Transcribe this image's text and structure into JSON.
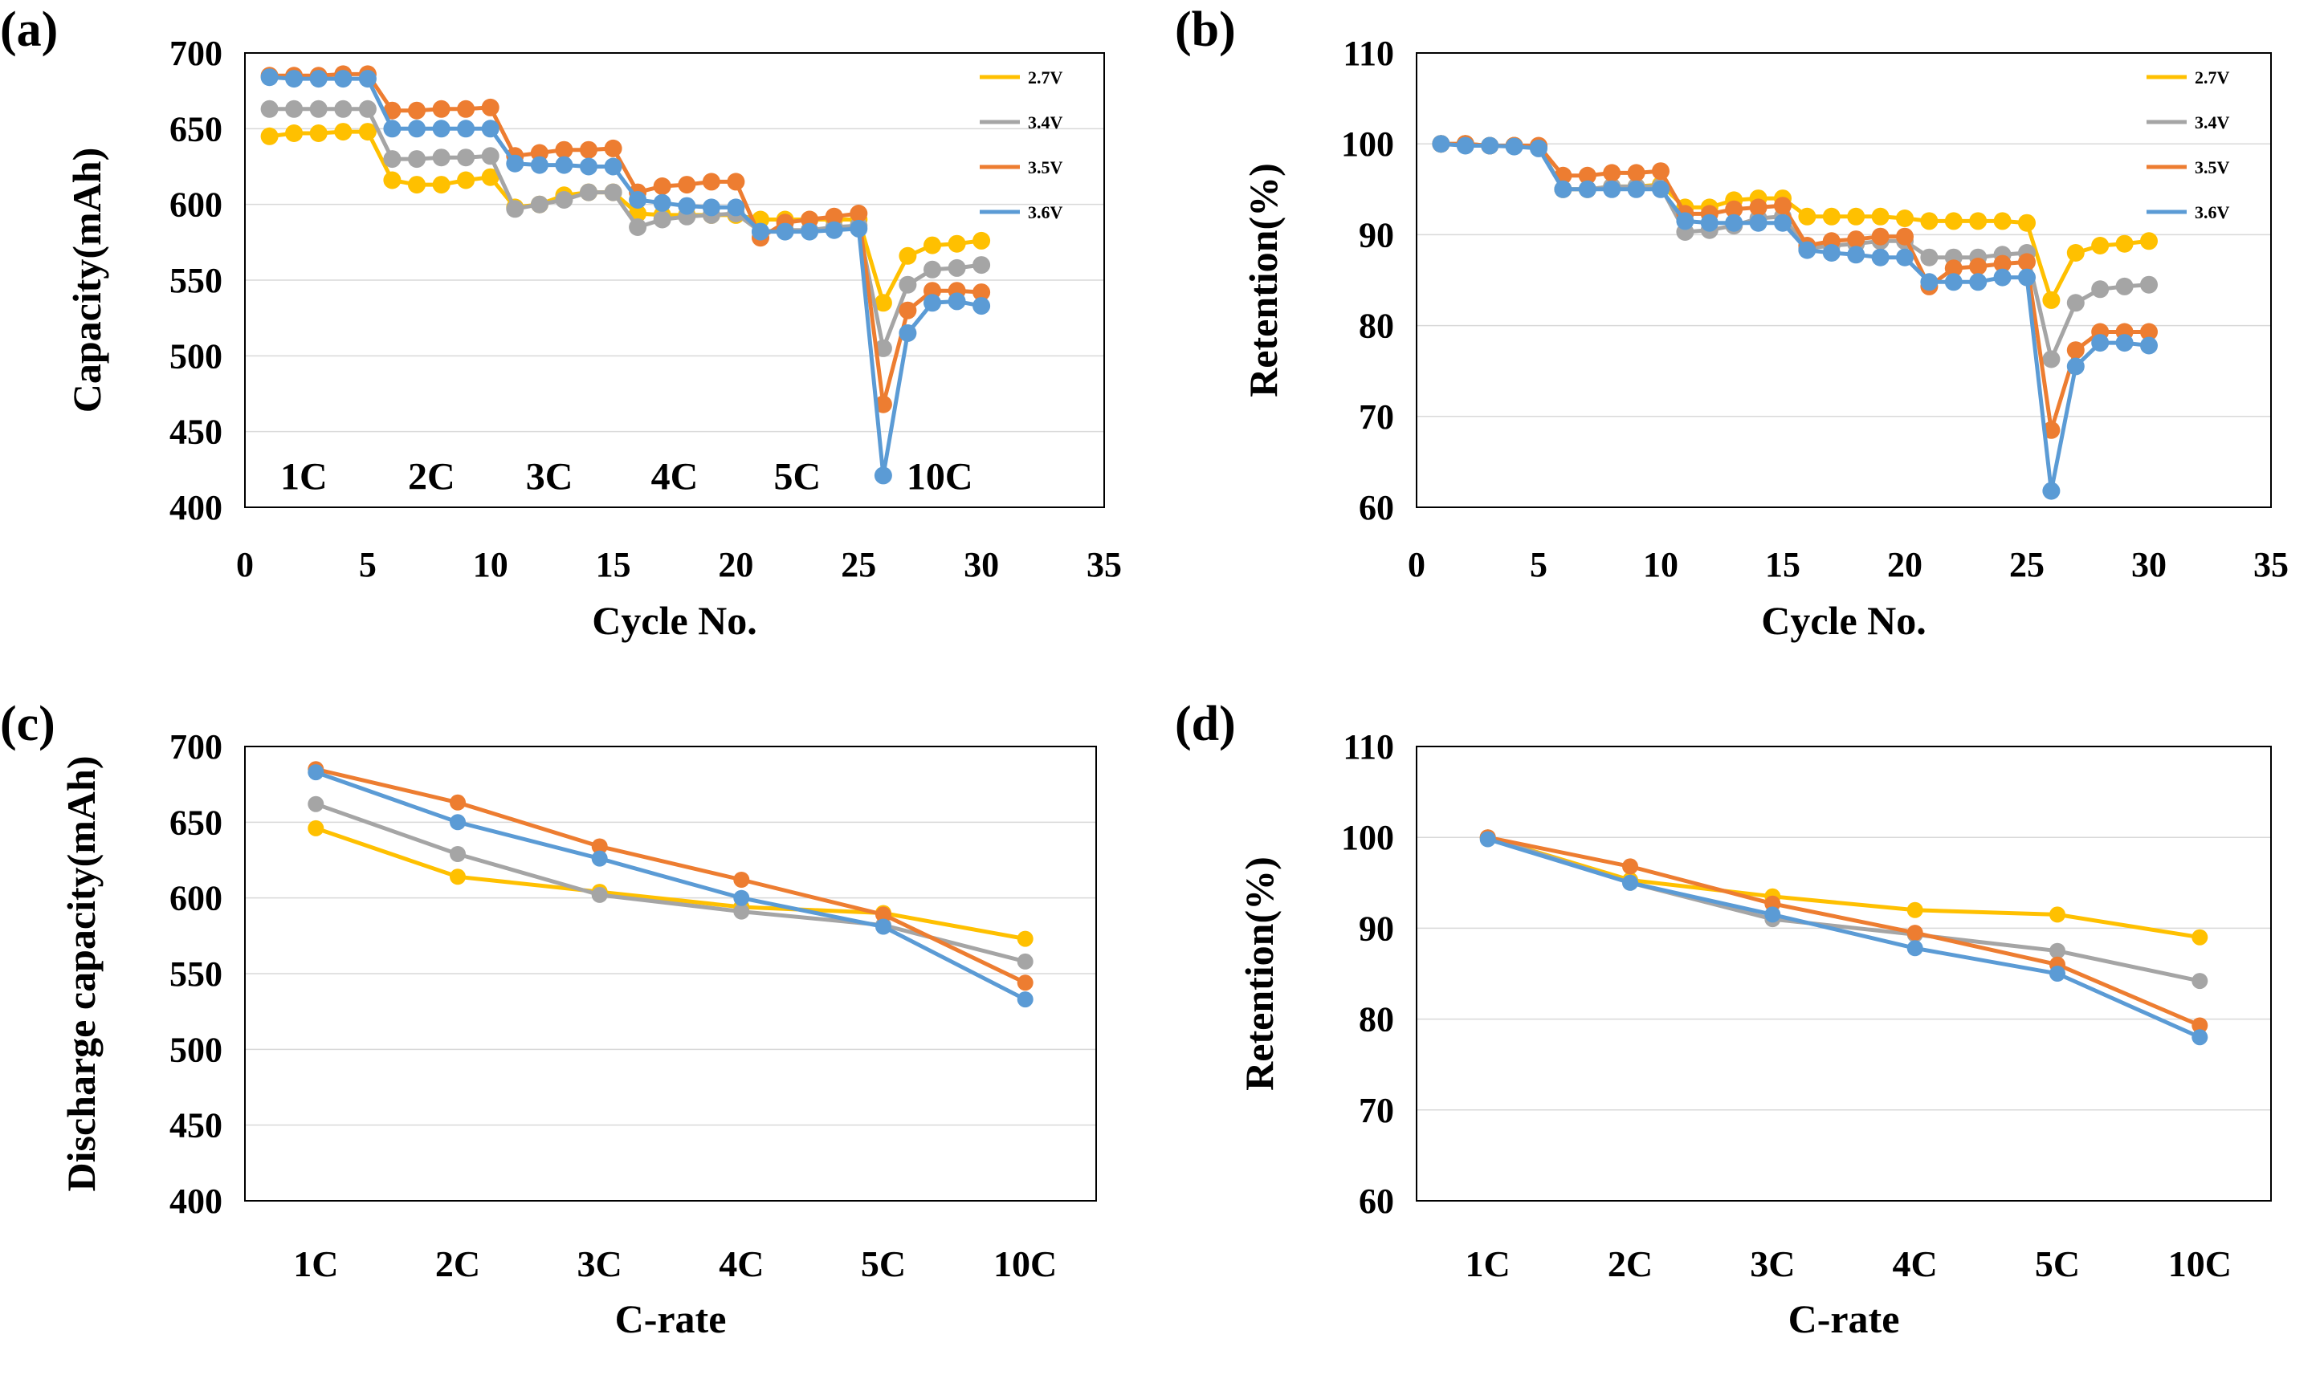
{
  "colors": {
    "2.7V": "#FFC000",
    "3.4V": "#A5A5A5",
    "3.5V": "#ED7D31",
    "3.6V": "#5B9BD5",
    "grid": "#D9D9D9"
  },
  "chart_data": [
    {
      "id": "a",
      "panel_label": "(a)",
      "type": "line",
      "xlabel": "Cycle No.",
      "ylabel": "Capacity(mAh)",
      "xlim": [
        0,
        35
      ],
      "ylim": [
        400,
        700
      ],
      "xticks": [
        0,
        5,
        10,
        15,
        20,
        25,
        30,
        35
      ],
      "yticks": [
        400,
        450,
        500,
        550,
        600,
        650,
        700
      ],
      "x": [
        1,
        2,
        3,
        4,
        5,
        6,
        7,
        8,
        9,
        10,
        11,
        12,
        13,
        14,
        15,
        16,
        17,
        18,
        19,
        20,
        21,
        22,
        23,
        24,
        25,
        26,
        27,
        28,
        29,
        30
      ],
      "legend": "top-right",
      "annotations": [
        {
          "text": "1C",
          "x": 2.4,
          "y": 412
        },
        {
          "text": "2C",
          "x": 7.6,
          "y": 412
        },
        {
          "text": "3C",
          "x": 12.4,
          "y": 412
        },
        {
          "text": "4C",
          "x": 17.5,
          "y": 412
        },
        {
          "text": "5C",
          "x": 22.5,
          "y": 412
        },
        {
          "text": "10C",
          "x": 28.3,
          "y": 412
        }
      ],
      "series": [
        {
          "name": "2.7V",
          "values": [
            645,
            647,
            647,
            648,
            648,
            616,
            613,
            613,
            616,
            618,
            598,
            600,
            606,
            608,
            608,
            594,
            593,
            593,
            593,
            593,
            590,
            590,
            590,
            590,
            590,
            535,
            566,
            573,
            574,
            576
          ]
        },
        {
          "name": "3.4V",
          "values": [
            663,
            663,
            663,
            663,
            663,
            630,
            630,
            631,
            631,
            632,
            597,
            600,
            603,
            608,
            608,
            585,
            590,
            592,
            593,
            594,
            582,
            583,
            583,
            585,
            586,
            505,
            547,
            557,
            558,
            560
          ]
        },
        {
          "name": "3.5V",
          "values": [
            685,
            685,
            685,
            686,
            686,
            662,
            662,
            663,
            663,
            664,
            632,
            634,
            636,
            636,
            637,
            608,
            612,
            613,
            615,
            615,
            578,
            588,
            590,
            592,
            594,
            468,
            530,
            543,
            543,
            542
          ]
        },
        {
          "name": "3.6V",
          "values": [
            684,
            683,
            683,
            683,
            683,
            650,
            650,
            650,
            650,
            650,
            627,
            626,
            626,
            625,
            625,
            603,
            601,
            599,
            598,
            598,
            582,
            582,
            582,
            583,
            584,
            421,
            515,
            535,
            536,
            533
          ]
        }
      ]
    },
    {
      "id": "b",
      "panel_label": "(b)",
      "type": "line",
      "xlabel": "Cycle No.",
      "ylabel": "Retention(%)",
      "xlim": [
        0,
        35
      ],
      "ylim": [
        60,
        110
      ],
      "xticks": [
        0,
        5,
        10,
        15,
        20,
        25,
        30,
        35
      ],
      "yticks": [
        60,
        70,
        80,
        90,
        100,
        110
      ],
      "x": [
        1,
        2,
        3,
        4,
        5,
        6,
        7,
        8,
        9,
        10,
        11,
        12,
        13,
        14,
        15,
        16,
        17,
        18,
        19,
        20,
        21,
        22,
        23,
        24,
        25,
        26,
        27,
        28,
        29,
        30
      ],
      "legend": "top-right",
      "series": [
        {
          "name": "2.7V",
          "values": [
            100,
            100,
            99.8,
            99.8,
            99.7,
            95,
            95,
            95.3,
            95.3,
            95.5,
            93,
            93,
            93.8,
            94,
            94,
            92,
            92,
            92,
            92,
            91.8,
            91.5,
            91.5,
            91.5,
            91.5,
            91.3,
            82.8,
            88,
            88.8,
            89,
            89.3
          ]
        },
        {
          "name": "3.4V",
          "values": [
            100,
            100,
            99.8,
            99.8,
            99.7,
            95,
            95,
            95.3,
            95.3,
            95.3,
            90.3,
            90.5,
            91,
            91.8,
            92,
            88.5,
            88.8,
            89,
            89.3,
            89.3,
            87.5,
            87.5,
            87.5,
            87.8,
            88,
            76.3,
            82.5,
            84,
            84.3,
            84.5
          ]
        },
        {
          "name": "3.5V",
          "values": [
            100,
            100,
            99.8,
            99.8,
            99.8,
            96.5,
            96.5,
            96.8,
            96.8,
            97,
            92.3,
            92.3,
            92.8,
            93,
            93.2,
            88.8,
            89.3,
            89.5,
            89.8,
            89.8,
            84.3,
            86.3,
            86.5,
            86.8,
            87,
            68.5,
            77.3,
            79.3,
            79.3,
            79.3
          ]
        },
        {
          "name": "3.6V",
          "values": [
            100,
            99.8,
            99.8,
            99.7,
            99.5,
            95,
            95,
            95,
            95,
            95,
            91.5,
            91.3,
            91.3,
            91.3,
            91.3,
            88.3,
            88,
            87.8,
            87.5,
            87.5,
            84.8,
            84.8,
            84.8,
            85.3,
            85.3,
            61.8,
            75.5,
            78.1,
            78.1,
            77.8
          ]
        }
      ]
    },
    {
      "id": "c",
      "panel_label": "(c)",
      "type": "line",
      "xlabel": "C-rate",
      "ylabel": "Discharge  capacity(mAh)",
      "categories": [
        "1C",
        "2C",
        "3C",
        "4C",
        "5C",
        "10C"
      ],
      "ylim": [
        400,
        700
      ],
      "yticks": [
        400,
        450,
        500,
        550,
        600,
        650,
        700
      ],
      "series": [
        {
          "name": "2.7V",
          "values": [
            646,
            614,
            604,
            594,
            590,
            573
          ]
        },
        {
          "name": "3.4V",
          "values": [
            662,
            629,
            602,
            591,
            582,
            558
          ]
        },
        {
          "name": "3.5V",
          "values": [
            685,
            663,
            634,
            612,
            589,
            544
          ]
        },
        {
          "name": "3.6V",
          "values": [
            683,
            650,
            626,
            600,
            581,
            533
          ]
        }
      ]
    },
    {
      "id": "d",
      "panel_label": "(d)",
      "type": "line",
      "xlabel": "C-rate",
      "ylabel": "Retention(%)",
      "categories": [
        "1C",
        "2C",
        "3C",
        "4C",
        "5C",
        "10C"
      ],
      "ylim": [
        60,
        110
      ],
      "yticks": [
        60,
        70,
        80,
        90,
        100,
        110
      ],
      "series": [
        {
          "name": "2.7V",
          "values": [
            100,
            95.3,
            93.5,
            92,
            91.5,
            89
          ]
        },
        {
          "name": "3.4V",
          "values": [
            100,
            95,
            91,
            89.3,
            87.5,
            84.2
          ]
        },
        {
          "name": "3.5V",
          "values": [
            100,
            96.8,
            92.7,
            89.5,
            86,
            79.3
          ]
        },
        {
          "name": "3.6V",
          "values": [
            99.8,
            95,
            91.5,
            87.8,
            85,
            78
          ]
        }
      ]
    }
  ]
}
